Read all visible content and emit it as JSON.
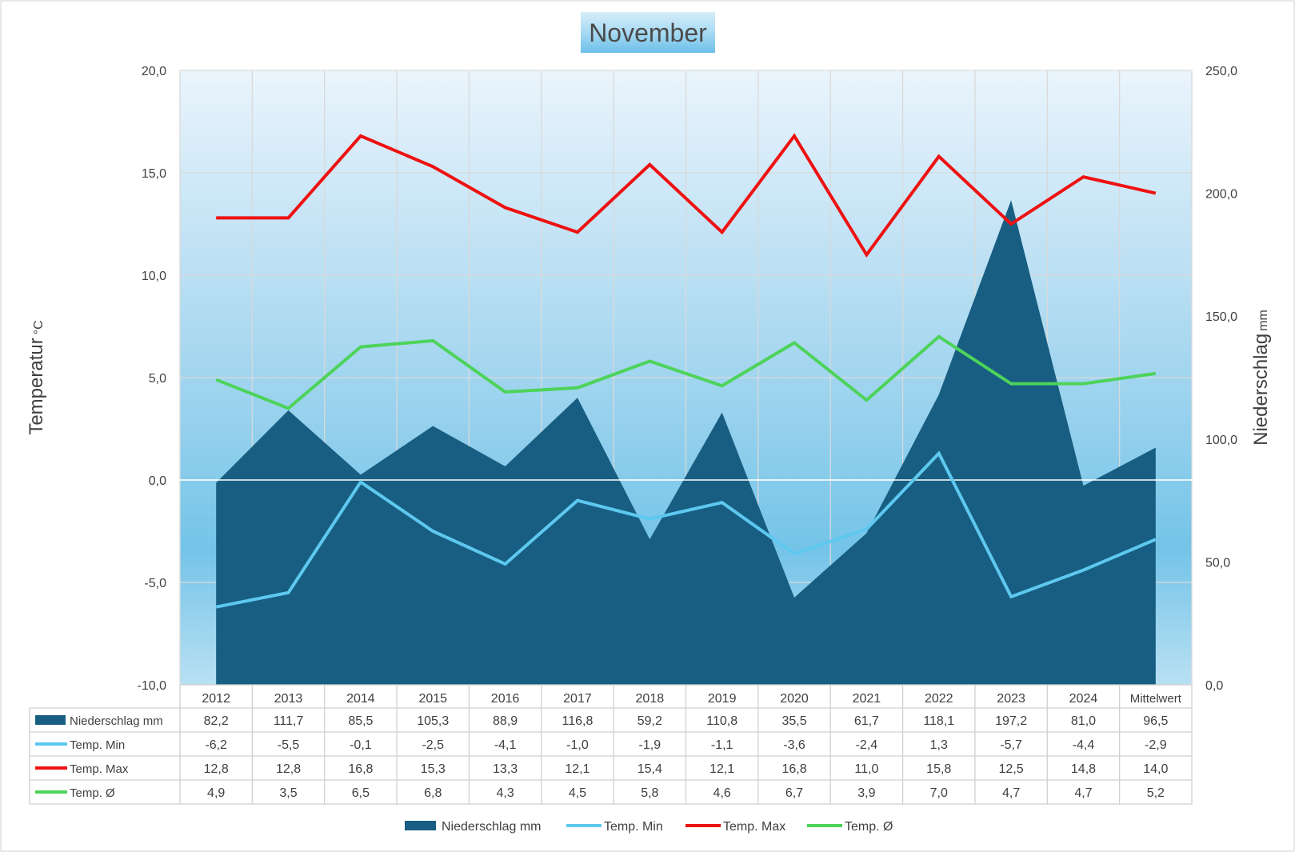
{
  "chart_data": {
    "type": "area",
    "title": "November",
    "y_left_label": "Temperatur",
    "y_left_unit": "°C",
    "y_right_label": "Niederschlag",
    "y_right_unit": "mm",
    "y_left_lim": [
      -10,
      20
    ],
    "y_right_lim": [
      0,
      250
    ],
    "y_left_ticks": [
      "20,0",
      "15,0",
      "10,0",
      "5,0",
      "0,0",
      "-5,0",
      "-10,0"
    ],
    "y_right_ticks": [
      "250,0",
      "200,0",
      "150,0",
      "100,0",
      "50,0",
      "0,0"
    ],
    "categories": [
      "2012",
      "2013",
      "2014",
      "2015",
      "2016",
      "2017",
      "2018",
      "2019",
      "2020",
      "2021",
      "2022",
      "2023",
      "2024",
      "Mittelwert"
    ],
    "grid": true,
    "legend_position": "bottom",
    "series": [
      {
        "name": "Niederschlag mm",
        "type": "area",
        "axis": "right",
        "color": "#175e82",
        "values": [
          82.2,
          111.7,
          85.5,
          105.3,
          88.9,
          116.8,
          59.2,
          110.8,
          35.5,
          61.7,
          118.1,
          197.2,
          81.0,
          96.5
        ],
        "labels": [
          "82,2",
          "111,7",
          "85,5",
          "105,3",
          "88,9",
          "116,8",
          "59,2",
          "110,8",
          "35,5",
          "61,7",
          "118,1",
          "197,2",
          "81,0",
          "96,5"
        ]
      },
      {
        "name": "Temp. Min",
        "type": "line",
        "axis": "left",
        "color": "#5ec8ef",
        "values": [
          -6.2,
          -5.5,
          -0.1,
          -2.5,
          -4.1,
          -1.0,
          -1.9,
          -1.1,
          -3.6,
          -2.4,
          1.3,
          -5.7,
          -4.4,
          -2.9
        ],
        "labels": [
          "-6,2",
          "-5,5",
          "-0,1",
          "-2,5",
          "-4,1",
          "-1,0",
          "-1,9",
          "-1,1",
          "-3,6",
          "-2,4",
          "1,3",
          "-5,7",
          "-4,4",
          "-2,9"
        ]
      },
      {
        "name": "Temp. Max",
        "type": "line",
        "axis": "left",
        "color": "#ee1111",
        "values": [
          12.8,
          12.8,
          16.8,
          15.3,
          13.3,
          12.1,
          15.4,
          12.1,
          16.8,
          11.0,
          15.8,
          12.5,
          14.8,
          14.0
        ],
        "labels": [
          "12,8",
          "12,8",
          "16,8",
          "15,3",
          "13,3",
          "12,1",
          "15,4",
          "12,1",
          "16,8",
          "11,0",
          "15,8",
          "12,5",
          "14,8",
          "14,0"
        ]
      },
      {
        "name": "Temp. Ø",
        "type": "line",
        "axis": "left",
        "color": "#4dd35a",
        "values": [
          4.9,
          3.5,
          6.5,
          6.8,
          4.3,
          4.5,
          5.8,
          4.6,
          6.7,
          3.9,
          7.0,
          4.7,
          4.7,
          5.2
        ],
        "labels": [
          "4,9",
          "3,5",
          "6,5",
          "6,8",
          "4,3",
          "4,5",
          "5,8",
          "4,6",
          "6,7",
          "3,9",
          "7,0",
          "4,7",
          "4,7",
          "5,2"
        ]
      }
    ]
  }
}
